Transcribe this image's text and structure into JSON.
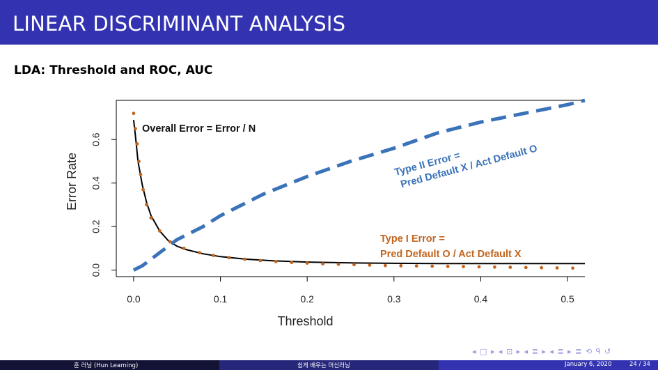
{
  "slide": {
    "title": "LINEAR DISCRIMINANT ANALYSIS",
    "subtitle": "LDA: Threshold and ROC, AUC"
  },
  "chart_data": {
    "type": "line",
    "xlabel": "Threshold",
    "ylabel": "Error Rate",
    "xlim": [
      -0.02,
      0.52
    ],
    "ylim": [
      -0.03,
      0.78
    ],
    "xticks": [
      "0.0",
      "0.1",
      "0.2",
      "0.3",
      "0.4",
      "0.5"
    ],
    "yticks": [
      "0.0",
      "0.2",
      "0.4",
      "0.6"
    ],
    "grid": false,
    "series": [
      {
        "name": "Overall Error = Error / N",
        "style": "solid",
        "color": "#000000",
        "x": [
          0.0,
          0.002,
          0.005,
          0.01,
          0.015,
          0.02,
          0.03,
          0.04,
          0.05,
          0.06,
          0.08,
          0.1,
          0.13,
          0.16,
          0.2,
          0.25,
          0.3,
          0.35,
          0.4,
          0.45,
          0.5,
          0.52
        ],
        "y": [
          0.69,
          0.62,
          0.5,
          0.39,
          0.31,
          0.25,
          0.18,
          0.135,
          0.11,
          0.095,
          0.075,
          0.062,
          0.05,
          0.043,
          0.037,
          0.033,
          0.031,
          0.03,
          0.03,
          0.03,
          0.03,
          0.03
        ]
      },
      {
        "name": "Type II Error = Pred Default X / Act Default O",
        "style": "dashed",
        "color": "#3b73b9",
        "x": [
          0.0,
          0.01,
          0.02,
          0.03,
          0.04,
          0.05,
          0.06,
          0.08,
          0.1,
          0.12,
          0.15,
          0.2,
          0.25,
          0.3,
          0.35,
          0.4,
          0.45,
          0.5,
          0.52
        ],
        "y": [
          0.0,
          0.02,
          0.05,
          0.08,
          0.11,
          0.14,
          0.16,
          0.2,
          0.25,
          0.29,
          0.35,
          0.43,
          0.5,
          0.56,
          0.63,
          0.68,
          0.72,
          0.76,
          0.78
        ]
      },
      {
        "name": "Type I Error = Pred Default O / Act Default X",
        "style": "dotted",
        "color": "#c1651e",
        "x": [
          0.0,
          0.002,
          0.004,
          0.006,
          0.008,
          0.011,
          0.015,
          0.02,
          0.03,
          0.042,
          0.058,
          0.076,
          0.092,
          0.11,
          0.128,
          0.146,
          0.164,
          0.182,
          0.2,
          0.218,
          0.236,
          0.254,
          0.272,
          0.29,
          0.308,
          0.326,
          0.344,
          0.362,
          0.38,
          0.398,
          0.416,
          0.434,
          0.452,
          0.47,
          0.488,
          0.506
        ],
        "y": [
          0.72,
          0.65,
          0.58,
          0.5,
          0.44,
          0.37,
          0.3,
          0.24,
          0.18,
          0.13,
          0.1,
          0.08,
          0.067,
          0.057,
          0.05,
          0.044,
          0.039,
          0.035,
          0.032,
          0.029,
          0.027,
          0.025,
          0.023,
          0.021,
          0.02,
          0.019,
          0.018,
          0.017,
          0.016,
          0.015,
          0.014,
          0.013,
          0.012,
          0.011,
          0.01,
          0.009
        ]
      }
    ],
    "annotations": {
      "overall": "Overall Error = Error / N",
      "type2_line1": "Type II Error =",
      "type2_line2": "Pred Default X / Act Default O",
      "type1_line1": "Type I Error =",
      "type1_line2": "Pred Default O / Act Default X"
    }
  },
  "nav": {
    "glyphs": "◂ □ ▸ ◂ ⊡ ▸ ◂ ≣ ▸ ◂ ≣ ▸   ≣   ⟲ ᑫ ↺"
  },
  "footer": {
    "left": "훈 러닝 (Hun Learning)",
    "center": "쉽게 배우는 머신러닝",
    "date": "January 6, 2020",
    "page": "24 / 34"
  },
  "colors": {
    "title_bar": "#3333b2",
    "overall": "#000000",
    "type2": "#3b73b9",
    "type1": "#c1651e"
  }
}
